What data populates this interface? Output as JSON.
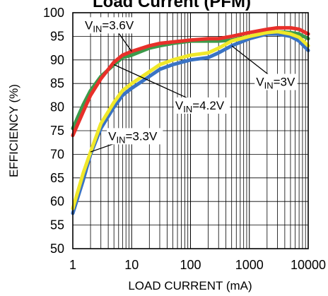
{
  "chart_data": {
    "type": "line",
    "title": "Load Current (PFM)",
    "xlabel": "LOAD CURRENT (mA)",
    "ylabel": "EFFICIENCY (%)",
    "xscale": "log",
    "xlim": [
      1,
      10000
    ],
    "ylim": [
      50,
      100
    ],
    "grid": true,
    "x_ticks": [
      "1",
      "10",
      "100",
      "1000",
      "10000"
    ],
    "y_ticks": [
      "50",
      "55",
      "60",
      "65",
      "70",
      "75",
      "80",
      "85",
      "90",
      "95",
      "100"
    ],
    "series": [
      {
        "name": "VIN=3V",
        "color": "#3a73c4",
        "x": [
          1,
          1.5,
          2,
          3,
          5,
          7,
          10,
          20,
          30,
          50,
          100,
          200,
          300,
          500,
          1000,
          2000,
          3000,
          5000,
          7000,
          10000
        ],
        "y": [
          57.5,
          64.5,
          70,
          75.5,
          80,
          82.5,
          84,
          86.5,
          88,
          89,
          90,
          90.5,
          91.5,
          93,
          94.5,
          95.5,
          95.5,
          95,
          94,
          92
        ]
      },
      {
        "name": "VIN=3.3V",
        "color": "#f0e82a",
        "x": [
          1,
          1.5,
          2,
          3,
          5,
          7,
          10,
          20,
          30,
          50,
          100,
          200,
          300,
          500,
          1000,
          2000,
          3000,
          5000,
          7000,
          10000
        ],
        "y": [
          58.5,
          66,
          70.5,
          76.5,
          81,
          83.5,
          85,
          87.5,
          89,
          90,
          91,
          91.5,
          92.5,
          94,
          95,
          95.8,
          96,
          95.5,
          94.8,
          93
        ]
      },
      {
        "name": "VIN=3.6V",
        "color": "#e8302a",
        "x": [
          1,
          1.5,
          2,
          3,
          5,
          7,
          10,
          20,
          30,
          50,
          100,
          200,
          300,
          500,
          1000,
          2000,
          3000,
          5000,
          7000,
          10000
        ],
        "y": [
          74,
          79,
          82.5,
          86,
          89.5,
          91,
          91.8,
          93,
          93.5,
          93.8,
          94.2,
          94.5,
          94.5,
          95,
          95.8,
          96.5,
          96.8,
          96.8,
          96.5,
          95.5
        ]
      },
      {
        "name": "VIN=4.2V",
        "color": "#3c9a4a",
        "x": [
          1,
          1.5,
          2,
          3,
          5,
          7,
          10,
          20,
          30,
          50,
          100,
          200,
          300,
          500,
          1000,
          2000,
          3000,
          5000,
          7000,
          10000
        ],
        "y": [
          75.5,
          80.5,
          83.5,
          86.5,
          89,
          90.5,
          91,
          92.5,
          93,
          93.5,
          94,
          94,
          94,
          94.2,
          95,
          95.8,
          96,
          95.8,
          95.5,
          94.5
        ]
      }
    ],
    "draw_order": [
      "VIN=4.2V",
      "VIN=3V",
      "VIN=3.3V",
      "VIN=3.6V"
    ],
    "annotations": [
      {
        "base": "V",
        "sub": "IN",
        "value": "=3.6V",
        "x": 1.6,
        "y": 96.5,
        "point_x": 10,
        "point_y": 91.8
      },
      {
        "base": "V",
        "sub": "IN",
        "value": "=4.2V",
        "x": 55,
        "y": 79.5,
        "point_x": 5,
        "point_y": 89
      },
      {
        "base": "V",
        "sub": "IN",
        "value": "=3.3V",
        "x": 4,
        "y": 73,
        "point_x": 2,
        "point_y": 70.5
      },
      {
        "base": "V",
        "sub": "IN",
        "value": "=3V",
        "x": 1300,
        "y": 84.5,
        "point_x": 500,
        "point_y": 93
      }
    ]
  }
}
